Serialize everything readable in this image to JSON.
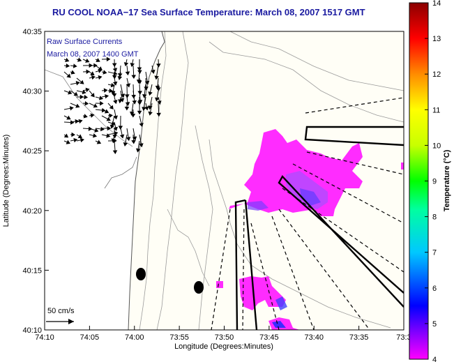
{
  "title": "RU COOL  NOAA−17  Sea Surface Temperature:  March 08, 2007 1517 GMT",
  "overlay": {
    "line1": "Raw Surface Currents",
    "line2": "March 08, 2007  1400 GMT"
  },
  "scale_label": "50 cm/s",
  "axes": {
    "xlabel": "Longitude (Degrees:Minutes)",
    "ylabel": "Latitude (Degrees:Minutes)",
    "x_ticks": [
      "74:10",
      "74:05",
      "74:00",
      "73:55",
      "73:50",
      "73:45",
      "73:40",
      "73:35",
      "73:3"
    ],
    "y_ticks": [
      "40:35",
      "40:30",
      "40:25",
      "40:20",
      "40:15",
      "40:10"
    ]
  },
  "colorbar": {
    "label": "Temperature (°C)",
    "min": 4,
    "max": 14,
    "ticks": [
      "14",
      "13",
      "12",
      "11",
      "10",
      "9",
      "8",
      "7",
      "6",
      "5",
      "4"
    ],
    "colors": [
      "#ff00ff",
      "#7a00ff",
      "#0000ff",
      "#00c8ff",
      "#00ffa0",
      "#00ff00",
      "#c8ff00",
      "#ffff00",
      "#ff8c00",
      "#ff0000",
      "#8b0000"
    ]
  },
  "colors": {
    "title": "#1a1aa0",
    "land": "#fffef6",
    "sst_cold": "#ff2cff",
    "sst_patch": "#7a3cff"
  }
}
